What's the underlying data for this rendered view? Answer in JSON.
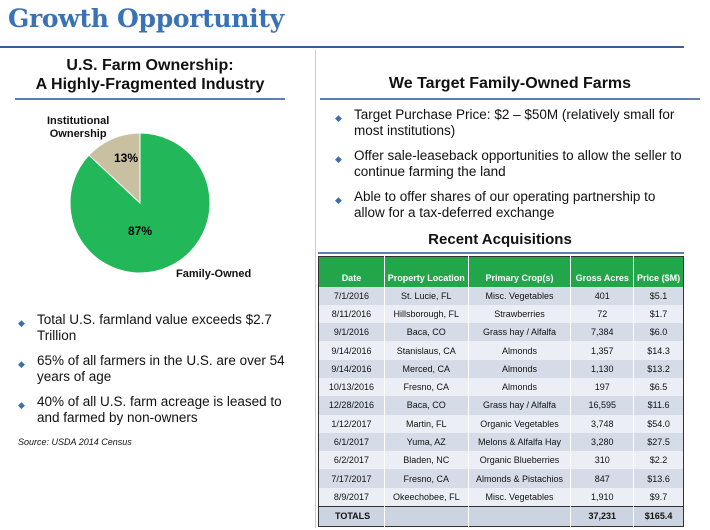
{
  "title": "Growth Opportunity",
  "left": {
    "heading_line1": "U.S. Farm Ownership:",
    "heading_line2": "A Highly-Fragmented Industry",
    "bullets": [
      "Total U.S. farmland value exceeds $2.7 Trillion",
      "65% of all farmers in the U.S. are over 54 years of age",
      "40% of all U.S. farm acreage is leased to and farmed by non-owners"
    ],
    "source": "Source:  USDA 2014 Census"
  },
  "chart_data": {
    "type": "pie",
    "slices": [
      {
        "name": "Family-Owned",
        "value": 87,
        "label": "87%",
        "color": "#22b85a"
      },
      {
        "name": "Institutional Ownership",
        "value": 13,
        "label": "13%",
        "color": "#c9c0a2"
      }
    ],
    "legend_line1": "Institutional",
    "legend_line2": "Ownership"
  },
  "right": {
    "heading": "We Target Family-Owned Farms",
    "bullets": [
      "Target Purchase Price:  $2 – $50M (relatively small for most institutions)",
      "Offer sale-leaseback opportunities to allow the seller to continue farming the land",
      "Able to offer shares of our operating partnership to allow for a tax-deferred exchange"
    ],
    "table_title": "Recent Acquisitions",
    "columns": [
      "Date",
      "Property Location",
      "Primary Crop(s)",
      "Gross Acres",
      "Price ($M)"
    ],
    "rows": [
      [
        "7/1/2016",
        "St. Lucie, FL",
        "Misc. Vegetables",
        "401",
        "$5.1"
      ],
      [
        "8/11/2016",
        "Hillsborough, FL",
        "Strawberries",
        "72",
        "$1.7"
      ],
      [
        "9/1/2016",
        "Baca, CO",
        "Grass hay / Alfalfa",
        "7,384",
        "$6.0"
      ],
      [
        "9/14/2016",
        "Stanislaus, CA",
        "Almonds",
        "1,357",
        "$14.3"
      ],
      [
        "9/14/2016",
        "Merced, CA",
        "Almonds",
        "1,130",
        "$13.2"
      ],
      [
        "10/13/2016",
        "Fresno, CA",
        "Almonds",
        "197",
        "$6.5"
      ],
      [
        "12/28/2016",
        "Baca, CO",
        "Grass hay / Alfalfa",
        "16,595",
        "$11.6"
      ],
      [
        "1/12/2017",
        "Martin, FL",
        "Organic Vegetables",
        "3,748",
        "$54.0"
      ],
      [
        "6/1/2017",
        "Yuma, AZ",
        "Melons & Alfalfa Hay",
        "3,280",
        "$27.5"
      ],
      [
        "6/2/2017",
        "Bladen, NC",
        "Organic Blueberries",
        "310",
        "$2.2"
      ],
      [
        "7/17/2017",
        "Fresno, CA",
        "Almonds & Pistachios",
        "847",
        "$13.6"
      ],
      [
        "8/9/2017",
        "Okeechobee, FL",
        "Misc. Vegetables",
        "1,910",
        "$9.7"
      ]
    ],
    "totals": [
      "TOTALS",
      "",
      "",
      "37,231",
      "$165.4"
    ]
  }
}
